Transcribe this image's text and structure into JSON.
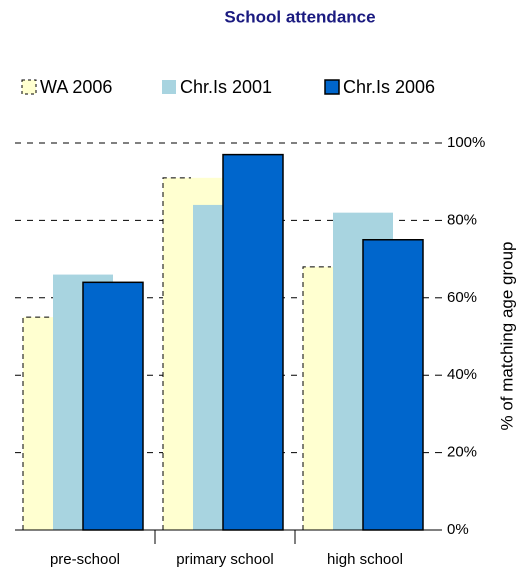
{
  "chart_data": {
    "type": "bar",
    "title": "School attendance",
    "categories": [
      "pre-school",
      "primary school",
      "high school"
    ],
    "series": [
      {
        "name": "WA 2006",
        "color": "#ffffd0",
        "values": [
          55,
          91,
          68
        ]
      },
      {
        "name": "Chr.Is 2001",
        "color": "#a8d4e0",
        "values": [
          66,
          84,
          82
        ]
      },
      {
        "name": "Chr.Is 2006",
        "color": "#0066cc",
        "values": [
          64,
          97,
          75
        ]
      }
    ],
    "y_axis_label": "% of matching age group",
    "ylim": [
      0,
      100
    ],
    "yticks": [
      {
        "value": 0,
        "label": "0%"
      },
      {
        "value": 20,
        "label": "20%"
      },
      {
        "value": 40,
        "label": "40%"
      },
      {
        "value": 60,
        "label": "60%"
      },
      {
        "value": 80,
        "label": "80%"
      },
      {
        "value": 100,
        "label": "100%"
      }
    ],
    "grid": true,
    "legend": "top"
  }
}
